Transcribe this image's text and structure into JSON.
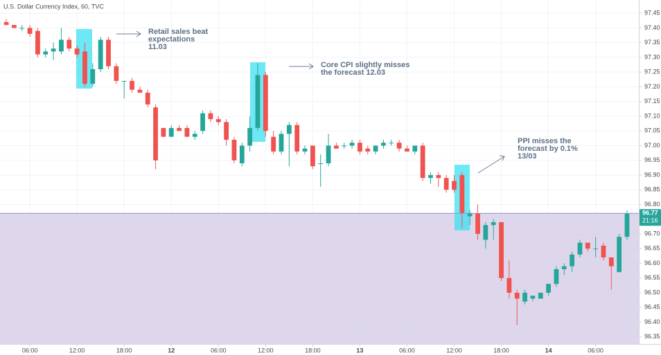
{
  "chart_data": {
    "type": "candlestick",
    "title": "U.S. Dollar Currency Index, 60, TVC",
    "x": [
      3,
      4,
      5,
      6,
      7,
      8,
      9,
      10,
      11,
      12,
      13,
      14,
      15,
      16,
      17,
      18,
      19,
      20,
      21,
      22,
      23,
      24,
      25,
      26,
      27,
      28,
      29,
      30,
      31,
      32,
      33,
      34,
      35,
      36,
      37,
      38,
      39,
      40,
      41,
      42,
      43,
      44,
      45,
      46,
      47,
      48,
      49,
      50,
      51,
      52,
      53,
      54,
      55,
      56,
      57,
      58,
      59,
      60,
      61,
      62,
      63,
      64,
      65,
      66,
      67,
      68,
      69,
      70,
      71,
      72,
      73,
      74,
      75,
      76,
      77,
      78,
      79,
      80,
      81,
      82
    ],
    "open": [
      97.42,
      97.41,
      97.4,
      97.4,
      97.39,
      97.31,
      97.32,
      97.32,
      97.36,
      97.33,
      97.32,
      97.21,
      97.26,
      97.36,
      97.27,
      97.22,
      97.22,
      97.19,
      97.18,
      97.13,
      97.06,
      97.03,
      97.06,
      97.06,
      97.03,
      97.05,
      97.11,
      97.09,
      97.08,
      97.02,
      96.94,
      97.0,
      97.06,
      97.24,
      97.03,
      96.98,
      97.04,
      97.07,
      96.98,
      97.0,
      96.94,
      96.94,
      97.0,
      97.0,
      97.0,
      97.01,
      96.99,
      96.98,
      97.0,
      97.01,
      97.01,
      96.99,
      96.98,
      97.0,
      96.89,
      96.9,
      96.89,
      96.88,
      96.9,
      96.76,
      96.77,
      96.68,
      96.73,
      96.74,
      96.55,
      96.5,
      96.47,
      96.48,
      96.48,
      96.5,
      96.53,
      96.58,
      96.59,
      96.63,
      96.67,
      96.65,
      96.66,
      96.62,
      96.57,
      96.69
    ],
    "high": [
      97.43,
      97.41,
      97.41,
      97.41,
      97.4,
      97.33,
      97.35,
      97.4,
      97.37,
      97.34,
      97.35,
      97.28,
      97.37,
      97.37,
      97.28,
      97.22,
      97.23,
      97.2,
      97.19,
      97.14,
      97.06,
      97.07,
      97.07,
      97.07,
      97.05,
      97.12,
      97.12,
      97.1,
      97.09,
      97.03,
      97.01,
      97.1,
      97.28,
      97.25,
      97.05,
      97.05,
      97.08,
      97.08,
      97.0,
      97.0,
      96.97,
      97.04,
      97.01,
      97.01,
      97.02,
      97.02,
      97.0,
      97.0,
      97.02,
      97.02,
      97.02,
      97.0,
      97.0,
      97.01,
      96.91,
      96.91,
      96.9,
      96.9,
      96.91,
      96.78,
      96.8,
      96.74,
      96.75,
      96.74,
      96.61,
      96.51,
      96.51,
      96.49,
      96.5,
      96.53,
      96.59,
      96.6,
      96.64,
      96.68,
      96.67,
      96.69,
      96.67,
      96.62,
      96.7,
      96.78
    ],
    "low": [
      97.41,
      97.4,
      97.39,
      97.37,
      97.3,
      97.3,
      97.29,
      97.31,
      97.32,
      97.3,
      97.2,
      97.2,
      97.25,
      97.26,
      97.21,
      97.16,
      97.18,
      97.18,
      97.13,
      96.92,
      97.03,
      97.03,
      97.05,
      97.03,
      97.02,
      97.04,
      97.08,
      97.07,
      97.0,
      96.94,
      96.93,
      96.98,
      97.05,
      97.03,
      96.97,
      96.97,
      96.93,
      96.97,
      96.97,
      96.92,
      96.86,
      96.93,
      96.99,
      96.99,
      96.99,
      96.97,
      96.97,
      96.97,
      96.99,
      97.0,
      96.98,
      96.98,
      96.97,
      96.88,
      96.87,
      96.86,
      96.84,
      96.84,
      96.72,
      96.73,
      96.68,
      96.65,
      96.68,
      96.54,
      96.48,
      96.39,
      96.46,
      96.47,
      96.48,
      96.49,
      96.52,
      96.56,
      96.57,
      96.62,
      96.64,
      96.62,
      96.61,
      96.51,
      96.57,
      96.68
    ],
    "close": [
      97.41,
      97.4,
      97.4,
      97.38,
      97.31,
      97.32,
      97.33,
      97.36,
      97.33,
      97.31,
      97.21,
      97.26,
      97.36,
      97.27,
      97.22,
      97.22,
      97.19,
      97.18,
      97.14,
      96.95,
      97.03,
      97.06,
      97.05,
      97.03,
      97.04,
      97.11,
      97.09,
      97.08,
      97.02,
      96.95,
      97.0,
      97.06,
      97.24,
      97.05,
      96.98,
      97.04,
      97.07,
      96.98,
      96.99,
      96.93,
      96.94,
      97.0,
      96.99,
      97.0,
      97.01,
      96.98,
      96.98,
      97.0,
      97.01,
      97.01,
      96.99,
      96.98,
      97.0,
      96.89,
      96.9,
      96.89,
      96.85,
      96.85,
      96.77,
      96.77,
      96.7,
      96.73,
      96.74,
      96.55,
      96.5,
      96.48,
      96.5,
      96.49,
      96.5,
      96.53,
      96.58,
      96.59,
      96.63,
      96.67,
      96.65,
      96.65,
      96.62,
      96.59,
      96.69,
      96.77
    ],
    "up_color": "#26a69a",
    "down_color": "#ef5350",
    "xlim": [
      2.2,
      83.5
    ],
    "xticks": [
      {
        "value": 6,
        "label": "06:00"
      },
      {
        "value": 12,
        "label": "12:00"
      },
      {
        "value": 18,
        "label": "18:00"
      },
      {
        "value": 24,
        "label": "12"
      },
      {
        "value": 30,
        "label": "06:00"
      },
      {
        "value": 36,
        "label": "12:00"
      },
      {
        "value": 42,
        "label": "18:00"
      },
      {
        "value": 48,
        "label": "13"
      },
      {
        "value": 54,
        "label": "06:00"
      },
      {
        "value": 60,
        "label": "12:00"
      },
      {
        "value": 66,
        "label": "18:00"
      },
      {
        "value": 72,
        "label": "14"
      },
      {
        "value": 78,
        "label": "06:00"
      }
    ],
    "ylim": [
      96.326,
      97.495
    ],
    "yticks": [
      97.45,
      {
        "value": 97.4,
        "label": "97.40"
      },
      97.35,
      {
        "value": 97.3,
        "label": "97.30"
      },
      97.25,
      {
        "value": 97.2,
        "label": "97.20"
      },
      97.15,
      {
        "value": 97.1,
        "label": "97.10"
      },
      97.05,
      {
        "value": 97,
        "label": "97.00"
      },
      96.95,
      {
        "value": 96.9,
        "label": "96.90"
      },
      96.85,
      {
        "value": 96.8,
        "label": "96.80"
      },
      96.75,
      {
        "value": 96.7,
        "label": "96.70"
      },
      96.65,
      {
        "value": 96.6,
        "label": "96.60"
      },
      96.55,
      {
        "value": 96.5,
        "label": "96.50"
      },
      96.45,
      {
        "value": 96.4,
        "label": "96.40"
      },
      96.35
    ],
    "grid": true,
    "last_price": 96.77,
    "countdown": "21:16",
    "annotations": [
      {
        "lines": [
          "Retail sales beat",
          "expectations",
          "11.03"
        ]
      },
      {
        "lines": [
          "Core CPI slightly misses",
          "the forecast 12.03"
        ]
      },
      {
        "lines": [
          "PPI misses the",
          "forecast by 0.1%",
          "13/03"
        ]
      }
    ]
  }
}
